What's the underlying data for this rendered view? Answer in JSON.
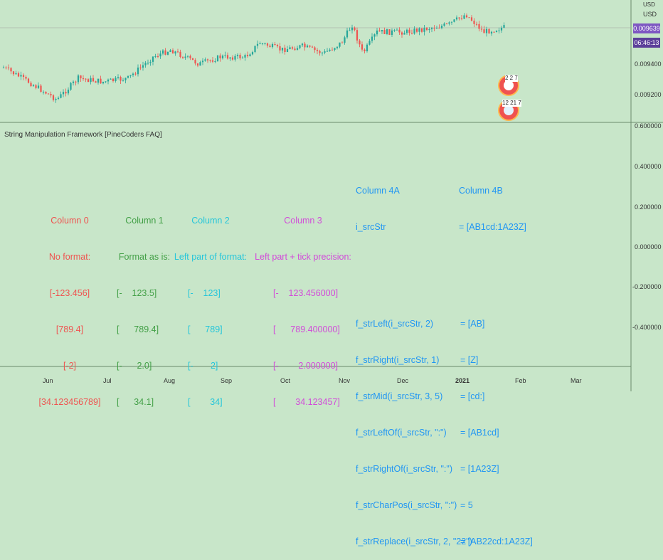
{
  "price_axis": {
    "currency": "USD",
    "ticks": [
      "0.009400",
      "0.009200"
    ],
    "current_price": "0.009639",
    "countdown": "06:46:13",
    "price_color": "#7e57c2",
    "countdown_color": "#5b3f99"
  },
  "indicator_axis": {
    "ticks": [
      "0.600000",
      "0.400000",
      "0.200000",
      "0.000000",
      "-0.200000",
      "-0.400000"
    ]
  },
  "time_axis": {
    "labels": [
      "Jun",
      "Jul",
      "Aug",
      "Sep",
      "Oct",
      "Nov",
      "Dec",
      "2021",
      "Feb",
      "Mar"
    ]
  },
  "indicator_title": "String Manipulation Framework [PineCoders FAQ]",
  "badges": {
    "first": "2 2 7",
    "second": "12 21 7"
  },
  "table": {
    "col0": {
      "header": "Column 0",
      "subheader": "No format:",
      "rows": [
        "[-123.456]",
        "[789.4]",
        "[-2]",
        "[34.123456789]"
      ]
    },
    "col1": {
      "header": "Column 1",
      "subheader": "Format as is:",
      "rows": [
        "[-    123.5]",
        "[      789.4]",
        "[-      2.0]",
        "[      34.1]"
      ]
    },
    "col2": {
      "header": "Column 2",
      "subheader": "Left part of format:",
      "rows": [
        "[-    123]",
        "[      789]",
        "[-       2]",
        "[        34]"
      ]
    },
    "col3": {
      "header": "Column 3",
      "subheader": "Left part + tick precision:",
      "rows": [
        "[-    123.456000]",
        "[      789.400000]",
        "[-        2.000000]",
        "[        34.123457]"
      ]
    },
    "col4a": {
      "header": "Column 4A",
      "src_label": "i_srcStr",
      "rows": [
        "f_strLeft(i_srcStr, 2)",
        "f_strRight(i_srcStr, 1)",
        "f_strMid(i_srcStr, 3, 5)",
        "f_strLeftOf(i_srcStr, \":\")",
        "f_strRightOf(i_srcStr, \":\")",
        "f_strCharPos(i_srcStr, \":\")",
        "f_strReplace(i_srcStr, 2, \"22\")"
      ]
    },
    "col4b": {
      "header": "Column 4B",
      "src_value": "= [AB1cd:1A23Z]",
      "rows": [
        "= [AB]",
        "= [Z]",
        "= [cd:]",
        "= [AB1cd]",
        "= [1A23Z]",
        "= 5",
        "= [AB22cd:1A23Z]"
      ]
    }
  }
}
